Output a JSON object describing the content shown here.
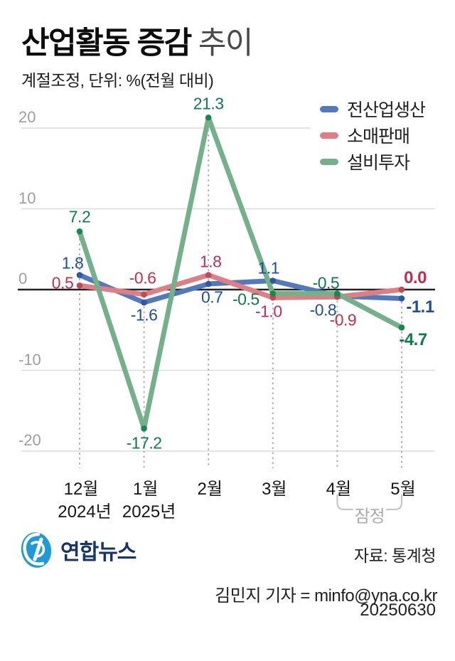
{
  "header": {
    "title_bold": "산업활동 증감",
    "title_light": "추이",
    "subtitle": "계절조정, 단위: %(전월 대비)"
  },
  "chart_data": {
    "type": "line",
    "categories": [
      "12월",
      "1월",
      "2월",
      "3월",
      "4월",
      "5월"
    ],
    "category_sublabels": [
      "2024년",
      "2025년",
      "",
      "",
      "",
      ""
    ],
    "ylim": [
      -22,
      23
    ],
    "yticks": [
      20,
      10,
      0,
      -10,
      -20
    ],
    "grid": true,
    "legend_position": "top-right",
    "series": [
      {
        "name": "전산업생산",
        "slug": "all-industry-production",
        "color": "#5379bd",
        "dot_color": "#2d57a8",
        "label_color": "#1d4fa0",
        "values": [
          1.8,
          -1.6,
          0.7,
          1.1,
          -0.8,
          -1.1
        ],
        "labels": [
          "1.8",
          "-1.6",
          "0.7",
          "1.1",
          "-0.8",
          "-1.1"
        ]
      },
      {
        "name": "소매판매",
        "slug": "retail-sales",
        "color": "#df7e84",
        "dot_color": "#c24a55",
        "label_color": "#c42e4c",
        "values": [
          0.5,
          -0.6,
          1.8,
          -1.0,
          -0.9,
          0.0
        ],
        "labels": [
          "0.5",
          "-0.6",
          "1.8",
          "-1.0",
          "-0.9",
          "0.0"
        ]
      },
      {
        "name": "설비투자",
        "slug": "facility-investment",
        "color": "#74b18b",
        "dot_color": "#17874f",
        "label_color": "#0c7c4a",
        "values": [
          7.2,
          -17.2,
          21.3,
          -0.5,
          -0.5,
          -4.7
        ],
        "labels": [
          "7.2",
          "-17.2",
          "21.3",
          "-0.5",
          "-0.5",
          "-4.7"
        ]
      }
    ],
    "provisional": {
      "label": "잠정",
      "from_index": 4,
      "to_index": 5
    }
  },
  "footer": {
    "logo_text": "연합뉴스",
    "source": "자료: 통계청",
    "byline": "김민지 기자 = minfo@yna.co.kr",
    "date": "20250630"
  }
}
